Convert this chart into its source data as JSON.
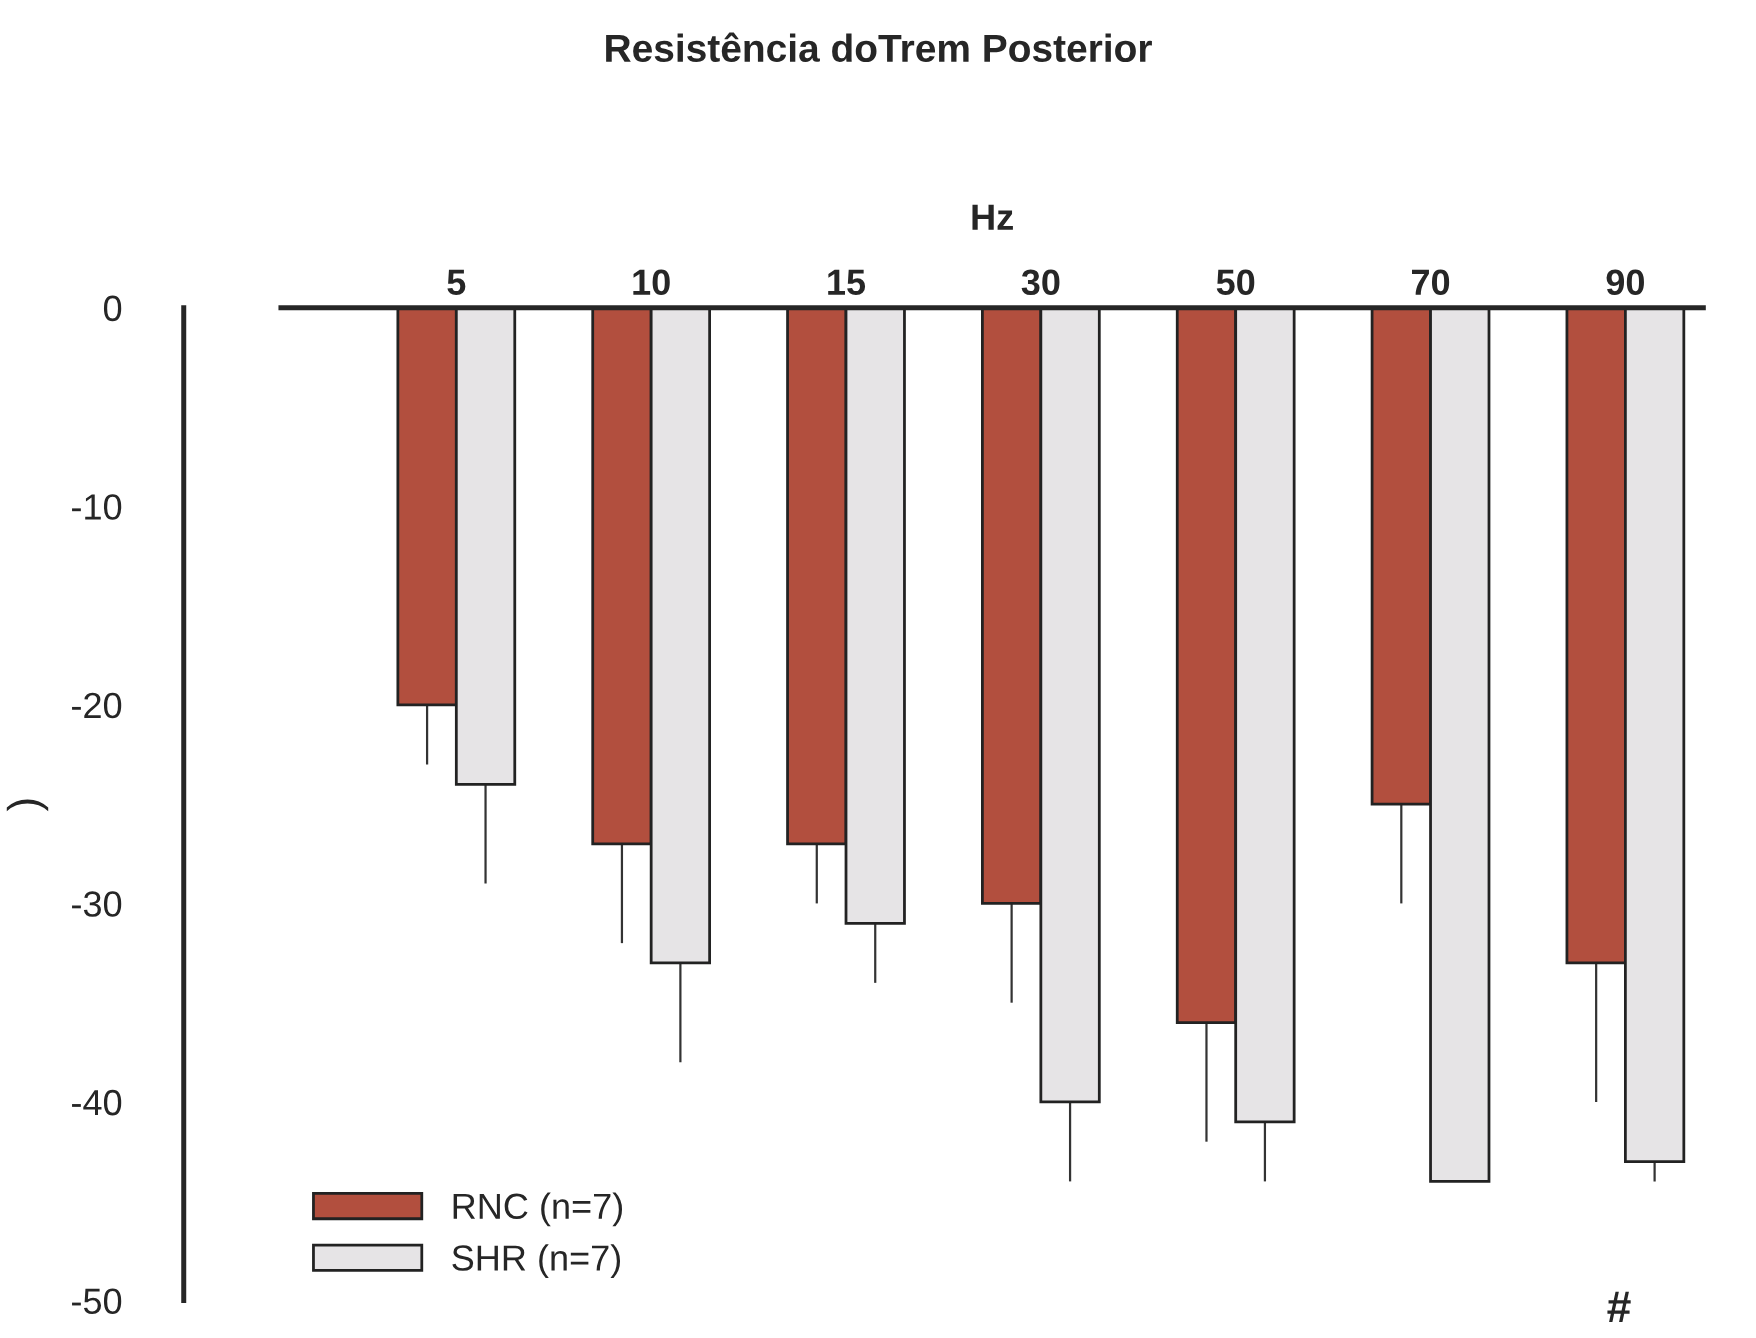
{
  "chart_data": {
    "type": "bar",
    "title": "Resistência doTrem Posterior",
    "xlabel": "Hz",
    "ylabel": ")",
    "categories": [
      "5",
      "10",
      "15",
      "30",
      "50",
      "70",
      "90"
    ],
    "series": [
      {
        "name": "RNC (n=7)",
        "color": "#b24f3e",
        "values": [
          -20,
          -27,
          -27,
          -30,
          -36,
          -25,
          -33
        ],
        "errors": [
          [
            -23,
            -20
          ],
          [
            -32,
            -27
          ],
          [
            -30,
            -27
          ],
          [
            -35,
            -30
          ],
          [
            -42,
            -36
          ],
          [
            -30,
            -25
          ],
          [
            -40,
            -33
          ]
        ]
      },
      {
        "name": "SHR (n=7)",
        "color": "#e6e4e6",
        "values": [
          -24,
          -33,
          -31,
          -40,
          -41,
          -44,
          -43
        ],
        "errors": [
          [
            -29,
            -24
          ],
          [
            -38,
            -33
          ],
          [
            -34,
            -31
          ],
          [
            -44,
            -40
          ],
          [
            -44,
            -41
          ],
          null,
          [
            -44,
            -43
          ]
        ]
      }
    ],
    "ylim": [
      -50,
      0
    ],
    "yticks": [
      -50,
      -40,
      -30,
      -20,
      -10,
      0
    ],
    "annotations": [
      "#"
    ],
    "grid": false,
    "legend": "bottom left"
  }
}
